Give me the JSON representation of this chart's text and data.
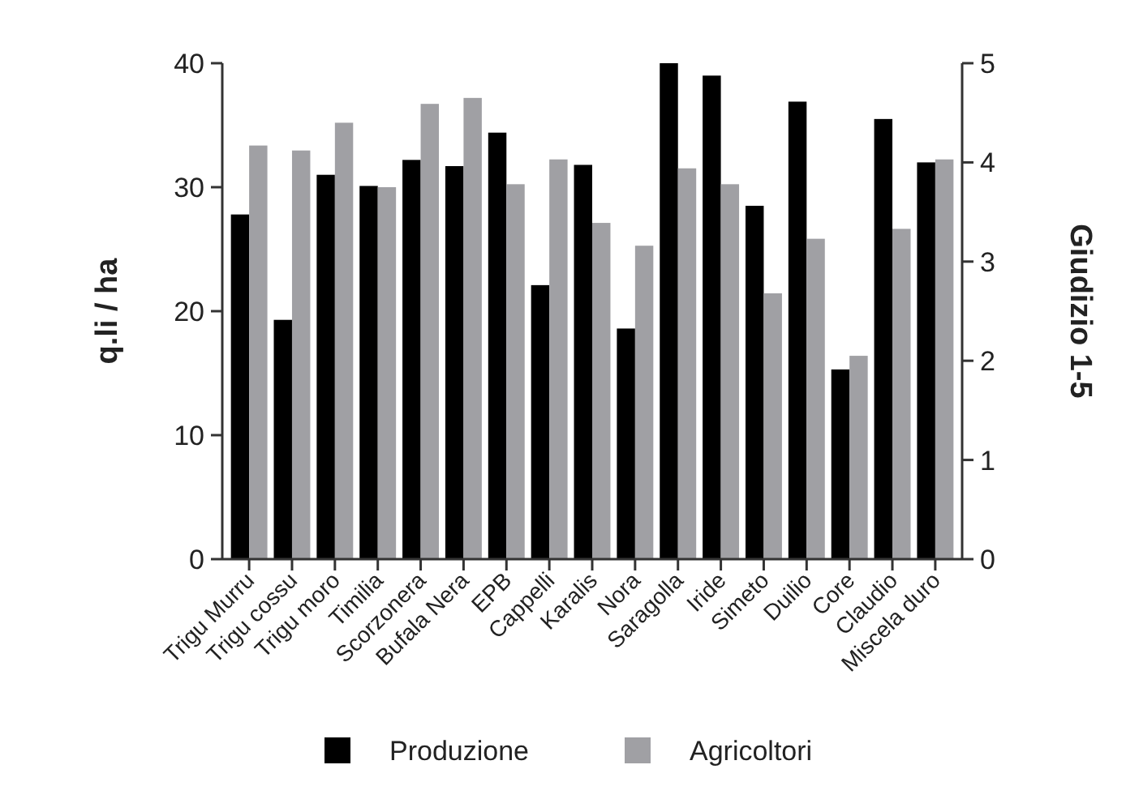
{
  "chart_data": {
    "type": "bar",
    "categories": [
      "Trigu Murru",
      "Trigu cossu",
      "Trigu moro",
      "Timilia",
      "Scorzonera",
      "Bufala Nera",
      "EPB",
      "Cappelli",
      "Karalis",
      "Nora",
      "Saragolla",
      "Iride",
      "Simeto",
      "Duilio",
      "Core",
      "Claudio",
      "Miscela duro"
    ],
    "series": [
      {
        "name": "Produzione",
        "color": "#000000",
        "values": [
          27.8,
          19.3,
          31,
          30.1,
          32.2,
          31.7,
          34.4,
          22.1,
          31.8,
          18.6,
          40,
          39,
          28.5,
          36.9,
          15.3,
          35.5,
          32
        ]
      },
      {
        "name": "Agricoltori",
        "color": "#a0a0a4",
        "axis": "y2",
        "values": [
          4.17,
          4.12,
          4.4,
          3.75,
          4.59,
          4.65,
          3.78,
          4.03,
          3.39,
          3.16,
          3.94,
          3.78,
          2.68,
          3.23,
          2.05,
          3.33,
          4.03
        ]
      }
    ],
    "ylabel": "q.li / ha",
    "y2label": "Giudizio 1-5",
    "ylim": [
      0,
      40
    ],
    "yticks": [
      0,
      10,
      20,
      30,
      40
    ],
    "y2lim": [
      0,
      5
    ],
    "y2ticks": [
      0,
      1,
      2,
      3,
      4,
      5
    ],
    "grid": false,
    "legend": "bottom"
  }
}
